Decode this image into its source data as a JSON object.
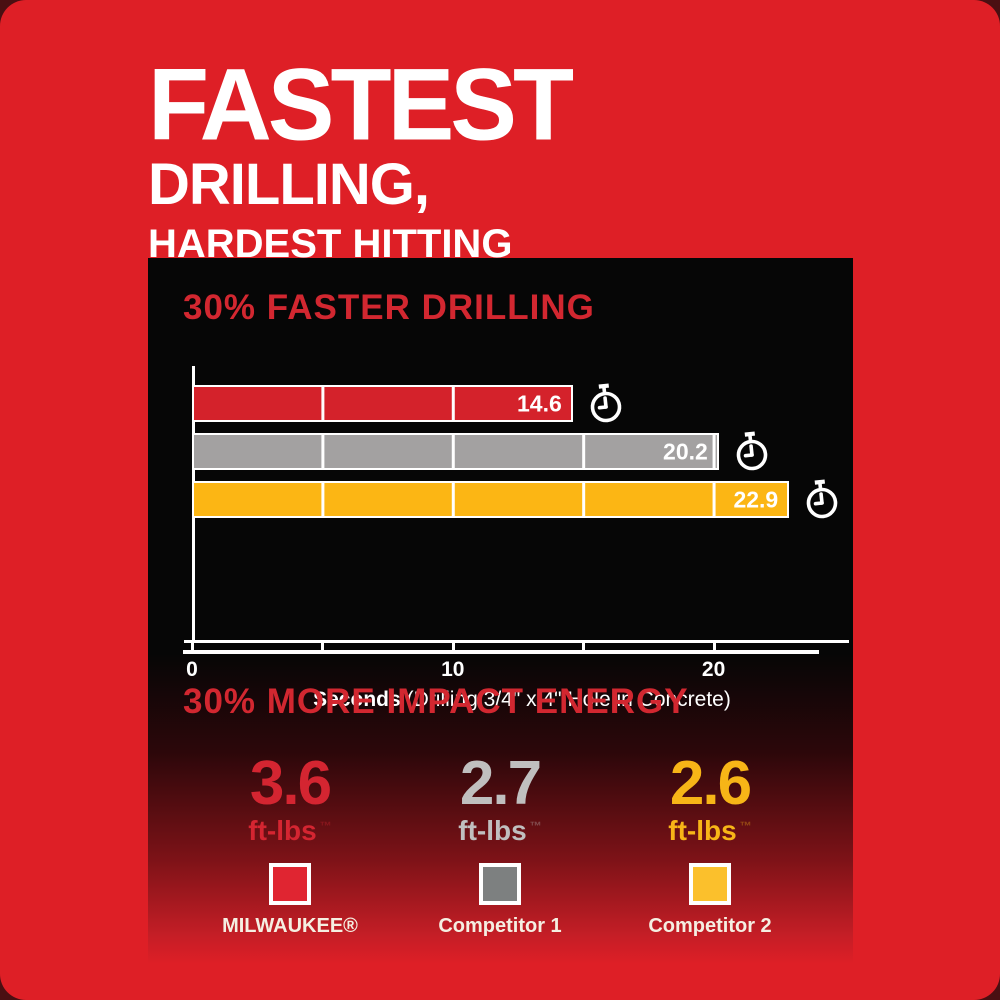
{
  "header": {
    "line1": "FASTEST",
    "line2": "DRILLING,",
    "line3": "HARDEST HITTING"
  },
  "colors": {
    "background_red": "#de1f26",
    "panel_black": "#060606",
    "accent_red_text": "#d22730",
    "white": "#ffffff"
  },
  "chart_data": [
    {
      "type": "bar",
      "orientation": "horizontal",
      "title": "30% FASTER DRILLING",
      "categories": [
        "MILWAUKEE®",
        "Competitor 1",
        "Competitor 2"
      ],
      "values": [
        14.6,
        20.2,
        22.9
      ],
      "value_labels": [
        "14.6",
        "20.2",
        "22.9"
      ],
      "colors": [
        "#d4222b",
        "#a3a1a1",
        "#fcb614"
      ],
      "xlabel_bold": "Seconds",
      "xlabel_rest": "(Drilling 3/4\" x 4\" Hole in Concrete)",
      "xlim": [
        0,
        25
      ],
      "ticks": [
        {
          "v": 0,
          "label": "0"
        },
        {
          "v": 5,
          "label": ""
        },
        {
          "v": 10,
          "label": "10"
        },
        {
          "v": 15,
          "label": ""
        },
        {
          "v": 20,
          "label": "20"
        }
      ],
      "grid": "white segment dividers every 5 units inside bars",
      "row_icon": "stopwatch-icon",
      "legend_position": "none"
    },
    {
      "type": "stat-comparison",
      "title": "30% MORE IMPACT ENERGY",
      "categories": [
        "MILWAUKEE®",
        "Competitor 1",
        "Competitor 2"
      ],
      "values": [
        3.6,
        2.7,
        2.6
      ],
      "value_labels": [
        "3.6",
        "2.7",
        "2.6"
      ],
      "unit": "ft-lbs",
      "unit_mark": "™",
      "value_colors": [
        "#d42531",
        "#c0bfbf",
        "#f7b517"
      ],
      "legend_colors": [
        "#e02531",
        "#7d8080",
        "#fbc02c"
      ],
      "legend_position": "bottom"
    }
  ]
}
